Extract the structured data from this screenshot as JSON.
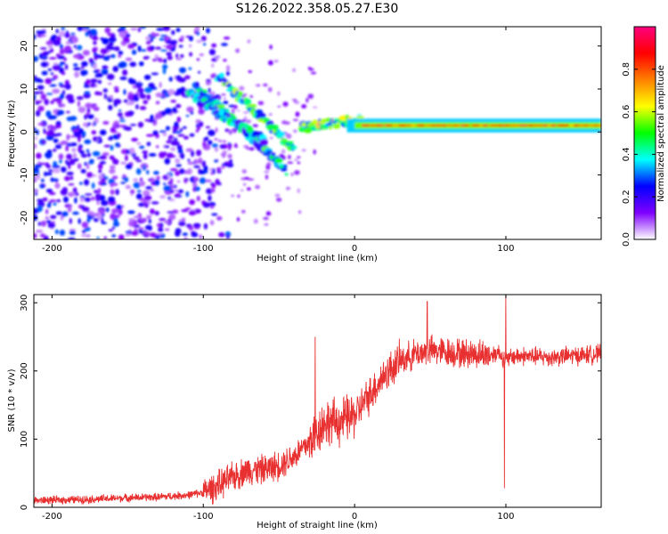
{
  "figure": {
    "title": "S126.2022.358.05.27.E30"
  },
  "chart_data": [
    {
      "type": "heatmap",
      "xlabel": "Height of straight line (km)",
      "ylabel": "Frequency (Hz)",
      "xlim": [
        -212,
        163
      ],
      "ylim": [
        -25,
        24.5
      ],
      "xticks": [
        -200,
        -100,
        0,
        100
      ],
      "yticks": [
        -20,
        -10,
        0,
        10,
        20
      ],
      "colorbar": {
        "label": "Normalized spectral amplitude",
        "range": [
          0,
          1
        ],
        "ticks": [
          "0.0",
          "0.2",
          "0.4",
          "0.6",
          "0.8"
        ],
        "tick_values": [
          0,
          0.2,
          0.4,
          0.6,
          0.8
        ],
        "colors": [
          "#ffffff",
          "#7f00ff",
          "#0000ff",
          "#00ffff",
          "#00ff00",
          "#ffff00",
          "#ff8000",
          "#ff0000",
          "#ff0080"
        ]
      },
      "features": {
        "carrier_line": {
          "x_start": 5,
          "x_end": 163,
          "frequency": 1.5,
          "amplitude": 0.9
        },
        "descending_arcs": [
          {
            "x_start": -105,
            "x_end": -45,
            "f_start": 11,
            "f_end": -9,
            "amplitude": 0.45
          },
          {
            "x_start": -90,
            "x_end": -40,
            "f_start": 13,
            "f_end": -4,
            "amplitude": 0.5
          },
          {
            "x_start": -110,
            "x_end": -60,
            "f_start": 9,
            "f_end": -2,
            "amplitude": 0.4
          },
          {
            "x_start": -35,
            "x_end": 5,
            "f_start": 1,
            "f_end": 3,
            "amplitude": 0.55
          }
        ],
        "noise_region": {
          "x_start": -212,
          "x_end": -95,
          "f_min": -25,
          "f_max": 24.5,
          "amplitude": 0.15
        }
      }
    },
    {
      "type": "line",
      "xlabel": "Height of straight line (km)",
      "ylabel": "SNR (10 * v/v)",
      "xlim": [
        -212,
        163
      ],
      "ylim": [
        0,
        312
      ],
      "xticks": [
        -200,
        -100,
        0,
        100
      ],
      "yticks": [
        0,
        100,
        200,
        300
      ],
      "line_color": "#e83030",
      "series": [
        {
          "x": [
            -212,
            -190,
            -170,
            -150,
            -130,
            -110,
            -100,
            -90,
            -80,
            -70,
            -60,
            -50,
            -40,
            -30,
            -20,
            -10,
            0,
            10,
            20,
            30,
            40,
            50,
            60,
            70,
            80,
            90,
            95,
            100,
            105,
            110,
            120,
            130,
            140,
            150,
            163
          ],
          "values": [
            10,
            11,
            12,
            14,
            15,
            18,
            22,
            32,
            45,
            55,
            55,
            62,
            75,
            95,
            125,
            125,
            135,
            165,
            195,
            215,
            225,
            230,
            228,
            226,
            225,
            224,
            228,
            215,
            222,
            222,
            221,
            220,
            222,
            223,
            225
          ]
        }
      ],
      "spikes": [
        {
          "x": -26,
          "y": 250
        },
        {
          "x": 48,
          "y": 302
        },
        {
          "x": 100,
          "y": 312
        },
        {
          "x": 99,
          "y": 28
        }
      ]
    }
  ]
}
